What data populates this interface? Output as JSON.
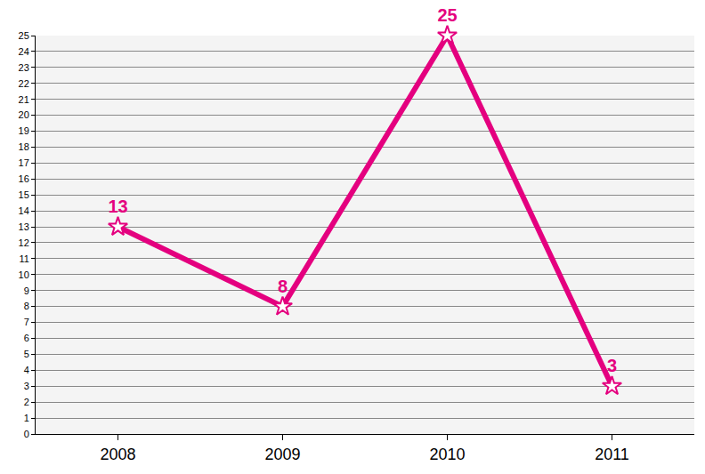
{
  "chart_data": {
    "type": "line",
    "categories": [
      "2008",
      "2009",
      "2010",
      "2011"
    ],
    "values": [
      13,
      8,
      25,
      3
    ],
    "color": "#e4007f",
    "ylim": [
      0,
      25
    ],
    "yticks": [
      0,
      1,
      2,
      3,
      4,
      5,
      6,
      7,
      8,
      9,
      10,
      11,
      12,
      13,
      14,
      15,
      16,
      17,
      18,
      19,
      20,
      21,
      22,
      23,
      24,
      25
    ],
    "grid": true,
    "data_labels": true,
    "marker": "star"
  }
}
